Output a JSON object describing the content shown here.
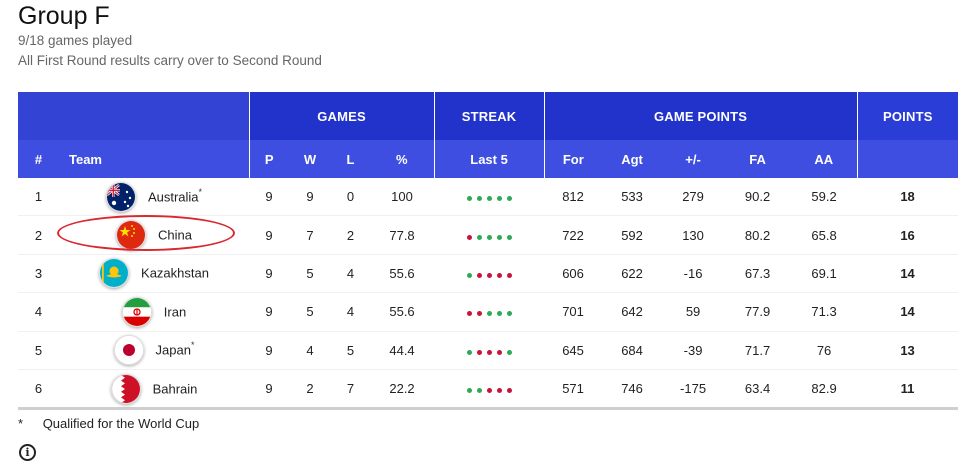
{
  "header": {
    "title": "Group F",
    "games_played": "9/18 games played",
    "note": "All First Round results carry over to Second Round"
  },
  "table": {
    "group_headers": {
      "games": "GAMES",
      "streak": "STREAK",
      "game_points": "GAME POINTS",
      "points": "POINTS"
    },
    "columns": {
      "pos": "#",
      "team": "Team",
      "p": "P",
      "w": "W",
      "l": "L",
      "pct": "%",
      "last5": "Last 5",
      "for": "For",
      "agt": "Agt",
      "diff": "+/-",
      "fa": "FA",
      "aa": "AA"
    },
    "rows": [
      {
        "pos": "1",
        "team": "Australia",
        "qualified_mark": "*",
        "p": "9",
        "w": "9",
        "l": "0",
        "pct": "100",
        "streak": [
          "W",
          "W",
          "W",
          "W",
          "W"
        ],
        "for": "812",
        "agt": "533",
        "diff": "279",
        "fa": "90.2",
        "aa": "59.2",
        "pts": "18"
      },
      {
        "pos": "2",
        "team": "China",
        "qualified_mark": "",
        "p": "9",
        "w": "7",
        "l": "2",
        "pct": "77.8",
        "streak": [
          "L",
          "W",
          "W",
          "W",
          "W"
        ],
        "for": "722",
        "agt": "592",
        "diff": "130",
        "fa": "80.2",
        "aa": "65.8",
        "pts": "16"
      },
      {
        "pos": "3",
        "team": "Kazakhstan",
        "qualified_mark": "",
        "p": "9",
        "w": "5",
        "l": "4",
        "pct": "55.6",
        "streak": [
          "W",
          "L",
          "L",
          "L",
          "L"
        ],
        "for": "606",
        "agt": "622",
        "diff": "-16",
        "fa": "67.3",
        "aa": "69.1",
        "pts": "14"
      },
      {
        "pos": "4",
        "team": "Iran",
        "qualified_mark": "",
        "p": "9",
        "w": "5",
        "l": "4",
        "pct": "55.6",
        "streak": [
          "L",
          "L",
          "W",
          "W",
          "W"
        ],
        "for": "701",
        "agt": "642",
        "diff": "59",
        "fa": "77.9",
        "aa": "71.3",
        "pts": "14"
      },
      {
        "pos": "5",
        "team": "Japan",
        "qualified_mark": "*",
        "p": "9",
        "w": "4",
        "l": "5",
        "pct": "44.4",
        "streak": [
          "W",
          "L",
          "L",
          "L",
          "W"
        ],
        "for": "645",
        "agt": "684",
        "diff": "-39",
        "fa": "71.7",
        "aa": "76",
        "pts": "13"
      },
      {
        "pos": "6",
        "team": "Bahrain",
        "qualified_mark": "",
        "p": "9",
        "w": "2",
        "l": "7",
        "pct": "22.2",
        "streak": [
          "W",
          "W",
          "L",
          "L",
          "L"
        ],
        "for": "571",
        "agt": "746",
        "diff": "-175",
        "fa": "63.4",
        "aa": "82.9",
        "pts": "11"
      }
    ]
  },
  "footnote": {
    "symbol": "*",
    "text": "Qualified for the World Cup"
  },
  "icons": {
    "info": "info-icon",
    "flags": [
      "australia-flag-icon",
      "china-flag-icon",
      "kazakhstan-flag-icon",
      "iran-flag-icon",
      "japan-flag-icon",
      "bahrain-flag-icon"
    ]
  },
  "colors": {
    "header_dark": "#2233cc",
    "header_light": "#3d4ee0",
    "win": "#2eaa55",
    "loss": "#c8143c",
    "highlight": "#d9282f"
  }
}
